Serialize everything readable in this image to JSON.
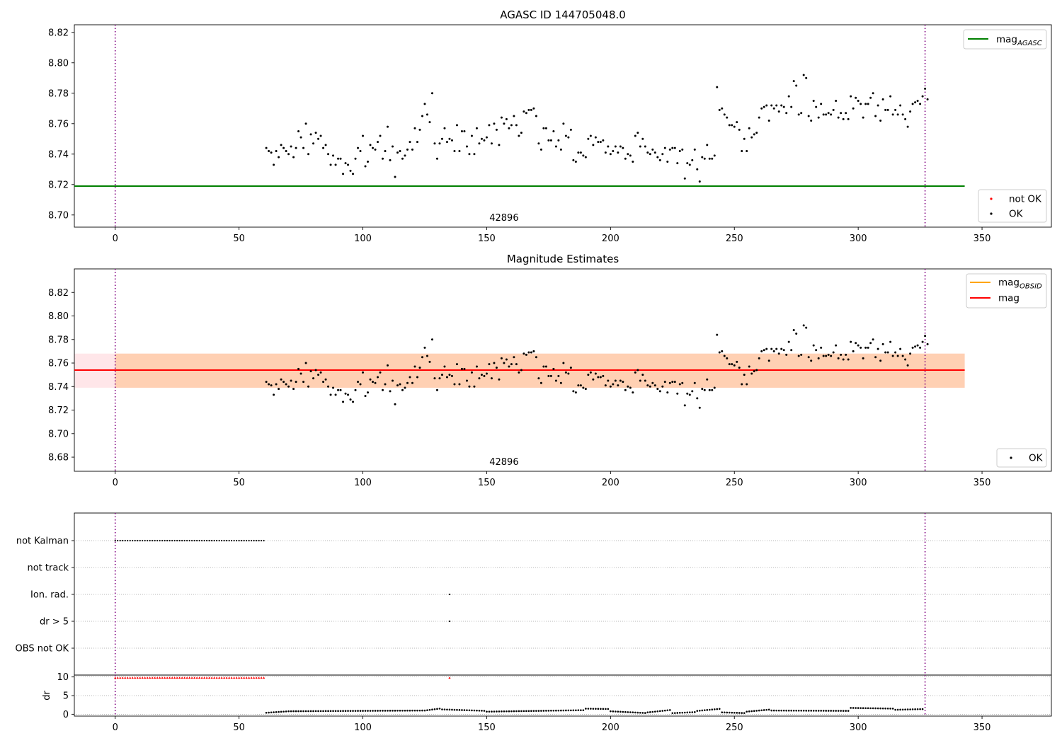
{
  "chart_data": [
    {
      "type": "scatter",
      "title": "AGASC ID 144705048.0",
      "xlim": [
        -16.5,
        378
      ],
      "ylim": [
        8.692,
        8.825
      ],
      "xticks": [
        0,
        50,
        100,
        150,
        200,
        250,
        300,
        350
      ],
      "yticks": [
        8.7,
        8.72,
        8.74,
        8.76,
        8.78,
        8.8,
        8.82
      ],
      "ytick_labels": [
        "8.70",
        "8.72",
        "8.74",
        "8.76",
        "8.78",
        "8.80",
        "8.82"
      ],
      "obsid_label": "42896",
      "obsid_x": 157,
      "obs_bounds": [
        0,
        327
      ],
      "lines": [
        {
          "name": "mag",
          "sub": "AGASC",
          "y": 8.719,
          "x": [
            -16.5,
            343
          ],
          "color": "#008000"
        }
      ],
      "series": [
        {
          "name": "not OK",
          "color": "#ff0000",
          "points": []
        },
        {
          "name": "OK",
          "color": "#000000",
          "points": "mag_points"
        }
      ],
      "legends": {
        "upper": [
          {
            "label": "mag",
            "sub": "AGASC",
            "kind": "line",
            "color": "#008000"
          }
        ],
        "lower": [
          {
            "label": "not OK",
            "kind": "dot",
            "color": "#ff0000"
          },
          {
            "label": "OK",
            "kind": "dot",
            "color": "#000000"
          }
        ]
      }
    },
    {
      "type": "scatter",
      "title": "Magnitude Estimates",
      "xlim": [
        -16.5,
        378
      ],
      "ylim": [
        8.668,
        8.84
      ],
      "xticks": [
        0,
        50,
        100,
        150,
        200,
        250,
        300,
        350
      ],
      "yticks": [
        8.68,
        8.7,
        8.72,
        8.74,
        8.76,
        8.78,
        8.8,
        8.82
      ],
      "ytick_labels": [
        "8.68",
        "8.70",
        "8.72",
        "8.74",
        "8.76",
        "8.78",
        "8.80",
        "8.82"
      ],
      "obsid_label": "42896",
      "obsid_x": 157,
      "obs_bounds": [
        0,
        327
      ],
      "bands": [
        {
          "y0": 8.739,
          "y1": 8.768,
          "x": [
            -16.5,
            343
          ],
          "color": "#ffb6c1",
          "opacity": 0.35
        },
        {
          "y0": 8.739,
          "y1": 8.768,
          "x": [
            0,
            343
          ],
          "color": "#ffa54f",
          "opacity": 0.35
        }
      ],
      "lines": [
        {
          "name": "mag",
          "sub": "OBSID",
          "y": 8.754,
          "x": [
            0,
            343
          ],
          "color": "#ffa500"
        },
        {
          "name": "mag",
          "sub": "",
          "y": 8.754,
          "x": [
            -16.5,
            343
          ],
          "color": "#ff0000"
        }
      ],
      "series": [
        {
          "name": "OK",
          "color": "#000000",
          "points": "mag_points"
        }
      ],
      "legends": {
        "upper": [
          {
            "label": "mag",
            "sub": "OBSID",
            "kind": "line",
            "color": "#ffa500"
          },
          {
            "label": "mag",
            "sub": "",
            "kind": "line",
            "color": "#ff0000"
          }
        ],
        "lower": [
          {
            "label": "OK",
            "kind": "dot",
            "color": "#000000"
          }
        ]
      }
    },
    {
      "type": "scatter",
      "title": "",
      "xlim": [
        -16.5,
        378
      ],
      "categories": [
        "not Kalman",
        "not track",
        "Ion. rad.",
        "dr > 5",
        "OBS not OK"
      ],
      "flags": {
        "not Kalman": {
          "x_range": [
            0,
            60
          ],
          "step": 1
        },
        "not track": {
          "x_range": null
        },
        "Ion. rad.": {
          "x": [
            135
          ]
        },
        "dr > 5": {
          "x": [
            135
          ]
        },
        "OBS not OK": {
          "x_range": null
        }
      },
      "obs_bounds": [
        0,
        327
      ]
    },
    {
      "type": "scatter",
      "title": "",
      "ylabel": "dr",
      "xlim": [
        -16.5,
        378
      ],
      "ylim": [
        -0.5,
        10.5
      ],
      "xticks": [
        0,
        50,
        100,
        150,
        200,
        250,
        300,
        350
      ],
      "yticks": [
        0,
        5,
        10
      ],
      "clipped": {
        "y": 9.8,
        "x_range": [
          0,
          60
        ],
        "extra_x": [
          135
        ],
        "color": "#ff0000"
      },
      "dr_segments": [
        {
          "x0": 61,
          "x1": 70,
          "y0": 0.4,
          "y1": 0.8
        },
        {
          "x0": 70,
          "x1": 125,
          "y0": 0.8,
          "y1": 1.0
        },
        {
          "x0": 125,
          "x1": 132,
          "y0": 1.0,
          "y1": 1.6
        },
        {
          "x0": 132,
          "x1": 150,
          "y0": 1.3,
          "y1": 0.9
        },
        {
          "x0": 150,
          "x1": 190,
          "y0": 0.7,
          "y1": 1.1
        },
        {
          "x0": 190,
          "x1": 200,
          "y0": 1.5,
          "y1": 1.4
        },
        {
          "x0": 200,
          "x1": 215,
          "y0": 0.8,
          "y1": 0.3
        },
        {
          "x0": 215,
          "x1": 225,
          "y0": 0.5,
          "y1": 1.2
        },
        {
          "x0": 225,
          "x1": 235,
          "y0": 0.3,
          "y1": 0.6
        },
        {
          "x0": 235,
          "x1": 245,
          "y0": 0.9,
          "y1": 1.5
        },
        {
          "x0": 245,
          "x1": 255,
          "y0": 0.5,
          "y1": 0.3
        },
        {
          "x0": 255,
          "x1": 265,
          "y0": 0.7,
          "y1": 1.3
        },
        {
          "x0": 265,
          "x1": 297,
          "y0": 1.0,
          "y1": 0.9
        },
        {
          "x0": 297,
          "x1": 315,
          "y0": 1.7,
          "y1": 1.5
        },
        {
          "x0": 315,
          "x1": 327,
          "y0": 1.2,
          "y1": 1.4
        }
      ]
    }
  ],
  "mag_points": {
    "x_start": 61,
    "x_step": 1,
    "y": [
      8.744,
      8.742,
      8.741,
      8.733,
      8.742,
      8.738,
      8.746,
      8.744,
      8.742,
      8.74,
      8.745,
      8.738,
      8.744,
      8.755,
      8.751,
      8.744,
      8.76,
      8.74,
      8.753,
      8.747,
      8.754,
      8.75,
      8.752,
      8.744,
      8.746,
      8.74,
      8.733,
      8.739,
      8.733,
      8.737,
      8.737,
      8.727,
      8.734,
      8.733,
      8.729,
      8.727,
      8.737,
      8.744,
      8.742,
      8.752,
      8.732,
      8.735,
      8.746,
      8.744,
      8.743,
      8.748,
      8.752,
      8.737,
      8.742,
      8.758,
      8.736,
      8.745,
      8.725,
      8.741,
      8.742,
      8.737,
      8.739,
      8.743,
      8.748,
      8.743,
      8.757,
      8.748,
      8.756,
      8.765,
      8.773,
      8.766,
      8.761,
      8.78,
      8.747,
      8.737,
      8.747,
      8.75,
      8.757,
      8.748,
      8.75,
      8.749,
      8.742,
      8.759,
      8.742,
      8.755,
      8.755,
      8.745,
      8.74,
      8.752,
      8.74,
      8.757,
      8.747,
      8.75,
      8.749,
      8.751,
      8.759,
      8.747,
      8.76,
      8.756,
      8.746,
      8.764,
      8.76,
      8.763,
      8.757,
      8.759,
      8.765,
      8.759,
      8.752,
      8.754,
      8.768,
      8.767,
      8.769,
      8.769,
      8.77,
      8.765,
      8.747,
      8.743,
      8.757,
      8.757,
      8.749,
      8.749,
      8.755,
      8.745,
      8.749,
      8.743,
      8.76,
      8.752,
      8.751,
      8.756,
      8.736,
      8.735,
      8.741,
      8.741,
      8.739,
      8.738,
      8.75,
      8.752,
      8.746,
      8.751,
      8.748,
      8.748,
      8.749,
      8.741,
      8.745,
      8.74,
      8.742,
      8.745,
      8.741,
      8.745,
      8.744,
      8.737,
      8.74,
      8.739,
      8.735,
      8.752,
      8.754,
      8.745,
      8.75,
      8.745,
      8.741,
      8.74,
      8.743,
      8.741,
      8.738,
      8.736,
      8.74,
      8.744,
      8.735,
      8.743,
      8.744,
      8.744,
      8.734,
      8.742,
      8.743,
      8.724,
      8.734,
      8.733,
      8.736,
      8.743,
      8.73,
      8.722,
      8.738,
      8.737,
      8.746,
      8.737,
      8.737,
      8.739,
      8.784,
      8.769,
      8.77,
      8.766,
      8.764,
      8.759,
      8.759,
      8.758,
      8.761,
      8.756,
      8.742,
      8.75,
      8.742,
      8.757,
      8.751,
      8.753,
      8.754,
      8.764,
      8.77,
      8.771,
      8.772,
      8.762,
      8.772,
      8.77,
      8.772,
      8.768,
      8.772,
      8.771,
      8.767,
      8.778,
      8.771,
      8.788,
      8.785,
      8.766,
      8.767,
      8.792,
      8.79,
      8.765,
      8.762,
      8.775,
      8.771,
      8.764,
      8.773,
      8.766,
      8.766,
      8.767,
      8.766,
      8.769,
      8.775,
      8.764,
      8.767,
      8.763,
      8.767,
      8.763,
      8.778,
      8.77,
      8.777,
      8.775,
      8.773,
      8.764,
      8.773,
      8.773,
      8.777,
      8.78,
      8.765,
      8.772,
      8.762,
      8.776,
      8.769,
      8.769,
      8.778,
      8.766,
      8.769,
      8.766,
      8.772,
      8.766,
      8.763,
      8.758,
      8.768,
      8.773,
      8.774,
      8.775,
      8.773,
      8.778,
      8.783,
      8.776
    ]
  }
}
